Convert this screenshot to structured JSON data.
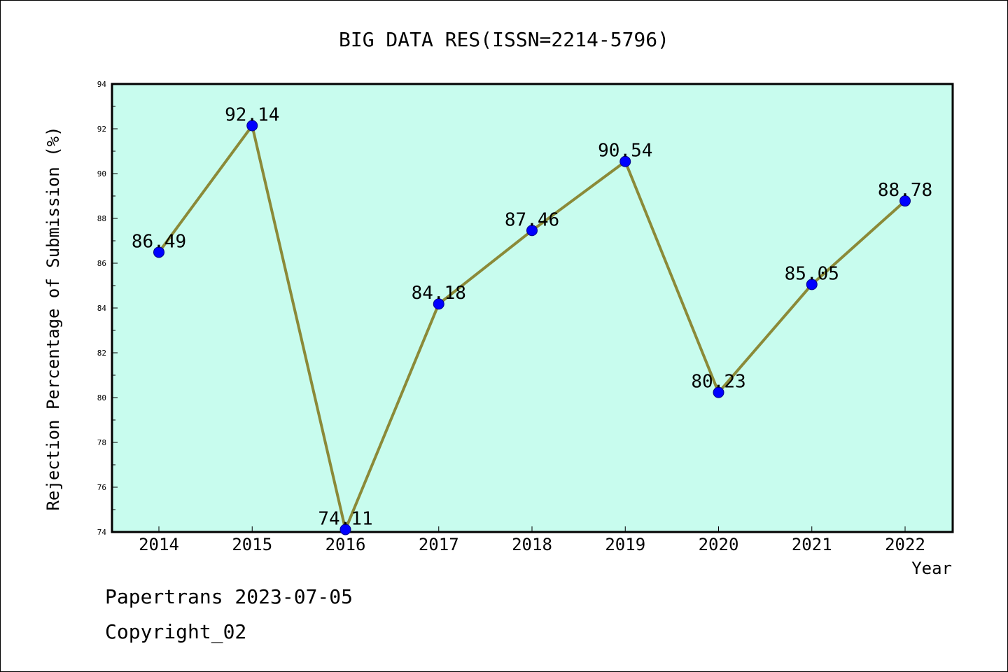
{
  "chart_data": {
    "type": "line",
    "title": "BIG DATA RES(ISSN=2214-5796)",
    "xlabel": "Year",
    "ylabel": "Rejection Percentage of Submission (%)",
    "categories": [
      "2014",
      "2015",
      "2016",
      "2017",
      "2018",
      "2019",
      "2020",
      "2021",
      "2022"
    ],
    "values": [
      86.49,
      92.14,
      74.11,
      84.18,
      87.46,
      90.54,
      80.23,
      85.05,
      88.78
    ],
    "data_labels": [
      "86.49",
      "92.14",
      "74.11",
      "84.18",
      "87.46",
      "90.54",
      "80.23",
      "85.05",
      "88.78"
    ],
    "ylim": [
      74,
      94
    ],
    "yticks": [
      "74",
      "76",
      "78",
      "80",
      "82",
      "84",
      "86",
      "88",
      "90",
      "92",
      "94"
    ],
    "grid": false,
    "legend": "none",
    "colors": {
      "plot_background": "#c8fcee",
      "line": "#8b8a38",
      "marker": "#0000ff",
      "marker_edge": "#00008b"
    }
  },
  "footer": {
    "line1": "Papertrans 2023-07-05",
    "line2": "Copyright_02"
  }
}
